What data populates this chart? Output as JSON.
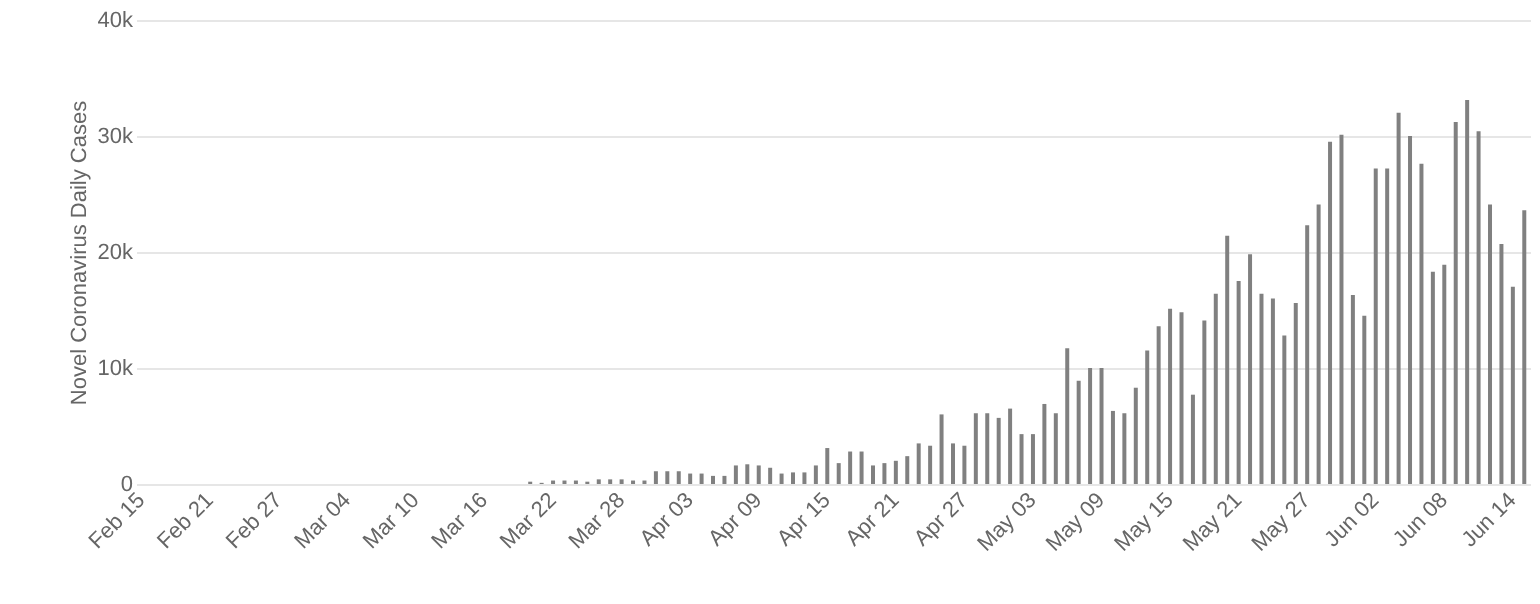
{
  "chart_data": {
    "type": "bar",
    "ylabel": "Novel Coronavirus Daily Cases",
    "categories": [
      "Feb 15",
      null,
      null,
      null,
      null,
      null,
      "Feb 21",
      null,
      null,
      null,
      null,
      null,
      "Feb 27",
      null,
      null,
      null,
      null,
      null,
      "Mar 04",
      null,
      null,
      null,
      null,
      null,
      "Mar 10",
      null,
      null,
      null,
      null,
      null,
      "Mar 16",
      null,
      null,
      null,
      null,
      null,
      "Mar 22",
      null,
      null,
      null,
      null,
      null,
      "Mar 28",
      null,
      null,
      null,
      null,
      null,
      "Apr 03",
      null,
      null,
      null,
      null,
      null,
      "Apr 09",
      null,
      null,
      null,
      null,
      null,
      "Apr 15",
      null,
      null,
      null,
      null,
      null,
      "Apr 21",
      null,
      null,
      null,
      null,
      null,
      "Apr 27",
      null,
      null,
      null,
      null,
      null,
      "May 03",
      null,
      null,
      null,
      null,
      null,
      "May 09",
      null,
      null,
      null,
      null,
      null,
      "May 15",
      null,
      null,
      null,
      null,
      null,
      "May 21",
      null,
      null,
      null,
      null,
      null,
      "May 27",
      null,
      null,
      null,
      null,
      null,
      "Jun 02",
      null,
      null,
      null,
      null,
      null,
      "Jun 08",
      null,
      null,
      null,
      null,
      null,
      "Jun 14",
      null
    ],
    "values": [
      0,
      0,
      0,
      0,
      0,
      0,
      0,
      0,
      0,
      0,
      0,
      0,
      0,
      0,
      0,
      0,
      0,
      0,
      0,
      0,
      0,
      0,
      0,
      0,
      0,
      0,
      0,
      0,
      0,
      0,
      0,
      0,
      0,
      0,
      200,
      100,
      300,
      300,
      300,
      200,
      400,
      400,
      400,
      300,
      300,
      1100,
      1100,
      1100,
      900,
      900,
      700,
      700,
      1600,
      1700,
      1600,
      1400,
      900,
      1000,
      1000,
      1600,
      3100,
      1800,
      2800,
      2800,
      1600,
      1800,
      2000,
      2400,
      3500,
      3300,
      6000,
      3500,
      3300,
      6100,
      6100,
      5700,
      6500,
      4300,
      4300,
      6900,
      6100,
      11700,
      8900,
      10000,
      10000,
      6300,
      6100,
      8300,
      11500,
      13600,
      15100,
      14800,
      7700,
      14100,
      16400,
      21400,
      17500,
      19800,
      16400,
      16000,
      12800,
      15600,
      22300,
      24100,
      29500,
      30100,
      16300,
      14500,
      27200,
      27200,
      32000,
      30000,
      27600,
      18300,
      18900,
      31200,
      33100,
      30400,
      24100,
      20700,
      17000,
      23600
    ],
    "color": "#808080",
    "ylim": [
      0,
      40000
    ],
    "yticks": [
      {
        "value": 0,
        "label": "0"
      },
      {
        "value": 10000,
        "label": "10k"
      },
      {
        "value": 20000,
        "label": "20k"
      },
      {
        "value": 30000,
        "label": "30k"
      },
      {
        "value": 40000,
        "label": "40k"
      }
    ],
    "grid": "y"
  }
}
